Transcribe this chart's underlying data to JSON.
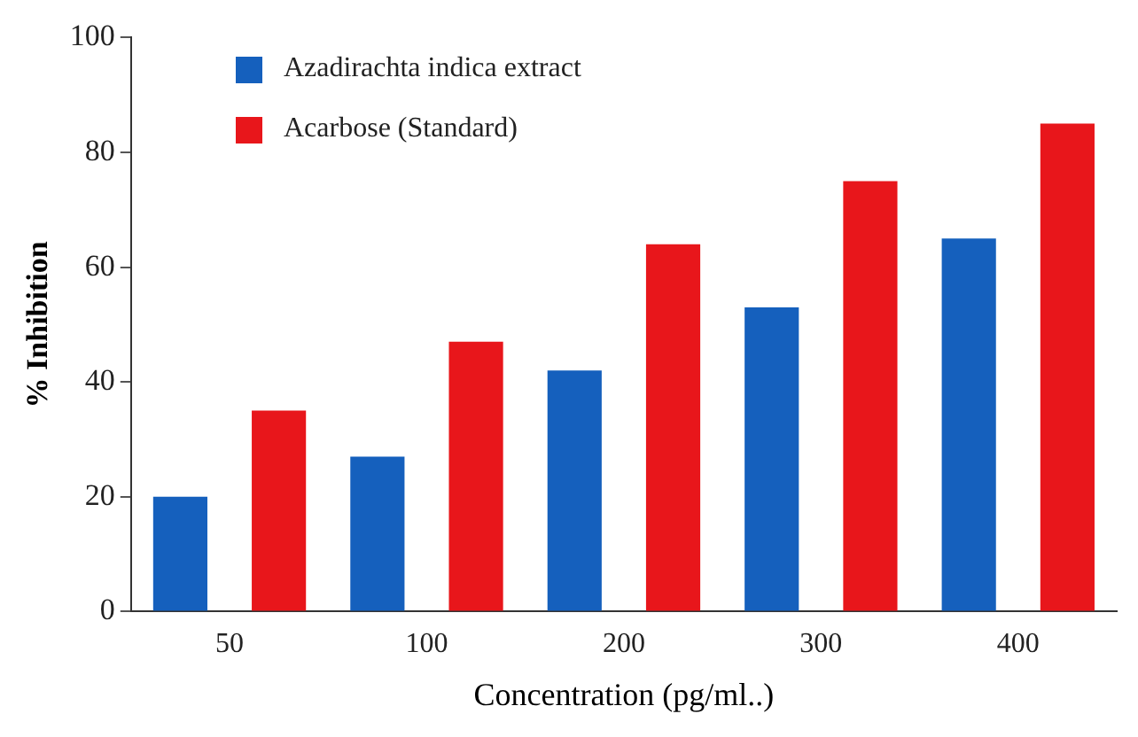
{
  "chart_data": {
    "type": "bar",
    "xlabel": "Concentration (pg/ml..)",
    "ylabel": "% Inhibition",
    "categories": [
      "50",
      "100",
      "200",
      "300",
      "400"
    ],
    "series": [
      {
        "name": "Azadirachta indica extract",
        "color": "#1560bd",
        "values": [
          20,
          27,
          42,
          53,
          65
        ]
      },
      {
        "name": "Acarbose (Standard)",
        "color": "#e8161b",
        "values": [
          35,
          47,
          64,
          75,
          85
        ]
      }
    ],
    "ylim": [
      0,
      100
    ],
    "yticks": [
      0,
      20,
      40,
      60,
      80,
      100
    ],
    "grid": false,
    "legend": "top left"
  }
}
